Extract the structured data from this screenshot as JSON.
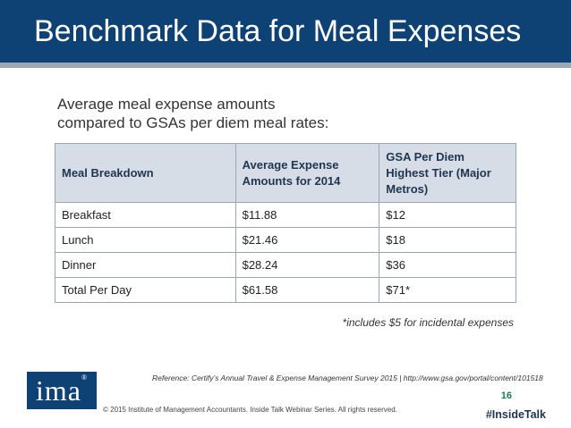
{
  "slide": {
    "title": "Benchmark Data for Meal Expenses",
    "subtitle_line1": "Average meal expense amounts",
    "subtitle_line2": "compared to GSAs per diem meal rates:"
  },
  "table": {
    "headers": [
      "Meal Breakdown",
      "Average Expense Amounts for 2014",
      "GSA Per Diem Highest Tier (Major Metros)"
    ],
    "rows": [
      [
        "Breakfast",
        "$11.88",
        "$12"
      ],
      [
        "Lunch",
        "$21.46",
        "$18"
      ],
      [
        "Dinner",
        "$28.24",
        "$36"
      ],
      [
        "Total Per Day",
        "$61.58",
        "$71*"
      ]
    ]
  },
  "footnote": "*includes $5 for incidental expenses",
  "reference": "Reference: Certify’s Annual Travel & Expense Management Survey 2015   |   http://www.gsa.gov/portal/content/101518",
  "logo": {
    "text": "ima",
    "mark": "®"
  },
  "page_number": "16",
  "copyright": "© 2015 Institute of Management Accountants. Inside Talk Webinar Series. All rights reserved.",
  "hashtag": "#InsideTalk",
  "colors": {
    "title_bar": "#0e4275",
    "header_cell": "#d7dde6",
    "page_number": "#1f7a55"
  }
}
